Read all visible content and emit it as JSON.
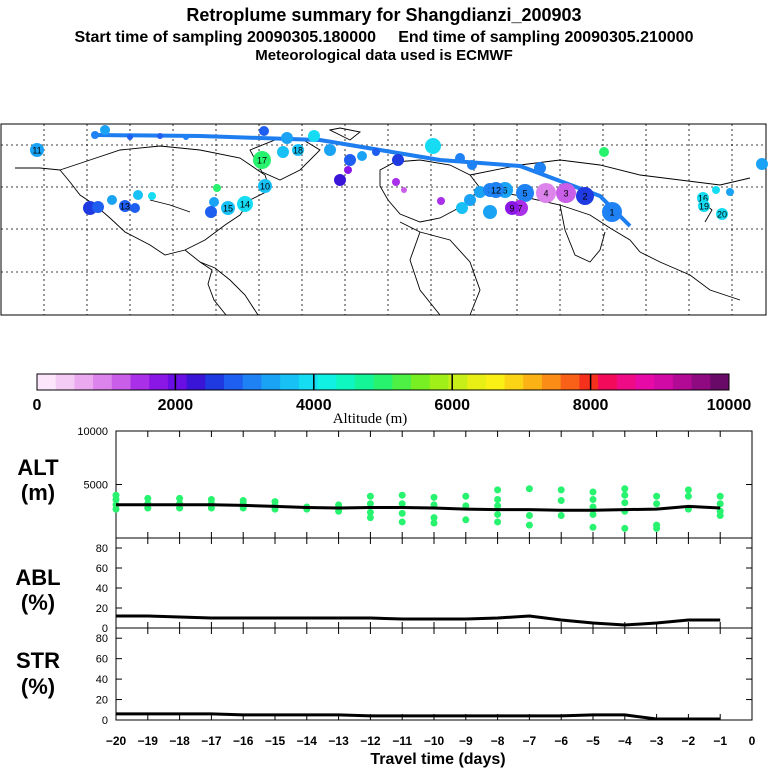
{
  "titles": {
    "main": "Retroplume summary for Shangdianzi_200903",
    "sampling": "Start time of sampling 20090305.180000     End time of sampling 20090305.210000",
    "met": "Meteorological data used is ECMWF"
  },
  "colorbar": {
    "label": "Altitude (m)",
    "tick_labels": [
      "0",
      "2000",
      "4000",
      "6000",
      "8000",
      "10000"
    ],
    "colors": [
      "#fbe6fb",
      "#f4cbf4",
      "#ebaaf0",
      "#dd84ec",
      "#c95fe8",
      "#a92fe8",
      "#8a17e6",
      "#6a0ee6",
      "#3a15d8",
      "#1e3ae0",
      "#1e5ef0",
      "#1f82f4",
      "#1aa3f5",
      "#17c0f5",
      "#15dcf3",
      "#10f0e3",
      "#0ff7c0",
      "#14f597",
      "#27f36f",
      "#4ef045",
      "#78ef22",
      "#a0ef18",
      "#c8f018",
      "#e8ef15",
      "#fbf015",
      "#fbd515",
      "#fbb215",
      "#fb8c15",
      "#f96018",
      "#f5301c",
      "#f30a5a",
      "#ef0a86",
      "#e70aa6",
      "#d10aa6",
      "#b30a96",
      "#8f0a80",
      "#6a0a68"
    ]
  },
  "map": {
    "trajectory_markers": [
      "1",
      "2",
      "3",
      "4",
      "5",
      "6",
      "7",
      "8",
      "9",
      "10",
      "11",
      "12",
      "13",
      "14",
      "15",
      "16",
      "17",
      "18",
      "19",
      "20"
    ]
  },
  "chart_data": [
    {
      "type": "line",
      "panel": "ALT",
      "ylabel": "ALT\n(m)",
      "ylabel_line1": "ALT",
      "ylabel_line2": "(m)",
      "ylim": [
        0,
        10000
      ],
      "ytick_labels": [
        "10000",
        "5000"
      ],
      "ytick_values": [
        10000,
        5000
      ],
      "x": [
        -20,
        -19,
        -18,
        -17,
        -16,
        -15,
        -14,
        -13,
        -12,
        -11,
        -10,
        -9,
        -8,
        -7,
        -6,
        -5,
        -4,
        -3,
        -2,
        -1
      ],
      "mean_altitude": [
        3100,
        3100,
        3100,
        3100,
        3050,
        2950,
        2850,
        2800,
        2850,
        2850,
        2800,
        2700,
        2650,
        2650,
        2600,
        2600,
        2650,
        2700,
        2950,
        2800
      ],
      "cluster_points": [
        {
          "x": -20,
          "y": [
            3100,
            2700,
            3600,
            4000
          ]
        },
        {
          "x": -19,
          "y": [
            3200,
            2800,
            3700
          ]
        },
        {
          "x": -18,
          "y": [
            3200,
            2800,
            3700
          ]
        },
        {
          "x": -17,
          "y": [
            3200,
            2800,
            3600
          ]
        },
        {
          "x": -16,
          "y": [
            3200,
            2800,
            3500
          ]
        },
        {
          "x": -15,
          "y": [
            3000,
            2700,
            3400
          ]
        },
        {
          "x": -14,
          "y": [
            2900,
            2700
          ]
        },
        {
          "x": -13,
          "y": [
            2800,
            2500,
            3100
          ]
        },
        {
          "x": -12,
          "y": [
            3900,
            3200,
            2400,
            1900
          ]
        },
        {
          "x": -11,
          "y": [
            4000,
            3200,
            2300,
            1500
          ]
        },
        {
          "x": -10,
          "y": [
            3800,
            3100,
            1900,
            1400
          ]
        },
        {
          "x": -9,
          "y": [
            3900,
            3000,
            1700
          ]
        },
        {
          "x": -8,
          "y": [
            4500,
            3600,
            3000,
            2200,
            1500
          ]
        },
        {
          "x": -7,
          "y": [
            4600,
            2100,
            1200
          ]
        },
        {
          "x": -6,
          "y": [
            4500,
            3500,
            2100
          ]
        },
        {
          "x": -5,
          "y": [
            4300,
            3600,
            2900,
            2200,
            1000
          ]
        },
        {
          "x": -4,
          "y": [
            4600,
            4000,
            3300,
            2500,
            900
          ]
        },
        {
          "x": -3,
          "y": [
            3900,
            3200,
            1200,
            900
          ]
        },
        {
          "x": -2,
          "y": [
            4500,
            3900,
            2700
          ]
        },
        {
          "x": -1,
          "y": [
            3900,
            3200,
            2500,
            2100
          ]
        }
      ]
    },
    {
      "type": "line",
      "panel": "ABL",
      "ylabel_line1": "ABL",
      "ylabel_line2": "(%)",
      "ylim": [
        0,
        90
      ],
      "ytick_labels": [
        "80",
        "60",
        "40",
        "20",
        "0"
      ],
      "ytick_values": [
        80,
        60,
        40,
        20,
        0
      ],
      "x": [
        -20,
        -19,
        -18,
        -17,
        -16,
        -15,
        -14,
        -13,
        -12,
        -11,
        -10,
        -9,
        -8,
        -7,
        -6,
        -5,
        -4,
        -3,
        -2,
        -1
      ],
      "values": [
        12,
        12,
        11,
        10,
        10,
        10,
        10,
        10,
        10,
        9,
        9,
        9,
        10,
        12,
        8,
        5,
        3,
        5,
        8,
        8
      ]
    },
    {
      "type": "line",
      "panel": "STR",
      "ylabel_line1": "STR",
      "ylabel_line2": "(%)",
      "ylim": [
        0,
        90
      ],
      "ytick_labels": [
        "80",
        "60",
        "40",
        "20",
        "0"
      ],
      "ytick_values": [
        80,
        60,
        40,
        20,
        0
      ],
      "x": [
        -20,
        -19,
        -18,
        -17,
        -16,
        -15,
        -14,
        -13,
        -12,
        -11,
        -10,
        -9,
        -8,
        -7,
        -6,
        -5,
        -4,
        -3,
        -2,
        -1
      ],
      "values": [
        6,
        6,
        6,
        6,
        5,
        5,
        5,
        5,
        4,
        4,
        4,
        4,
        4,
        4,
        4,
        5,
        5,
        1,
        1,
        1
      ]
    }
  ],
  "xaxis": {
    "label": "Travel time (days)",
    "tick_labels": [
      "−20",
      "−19",
      "−18",
      "−17",
      "−16",
      "−15",
      "−14",
      "−13",
      "−12",
      "−11",
      "−10",
      "−9",
      "−8",
      "−7",
      "−6",
      "−5",
      "−4",
      "−3",
      "−2",
      "−1",
      "0"
    ],
    "range": [
      -20,
      0
    ]
  }
}
